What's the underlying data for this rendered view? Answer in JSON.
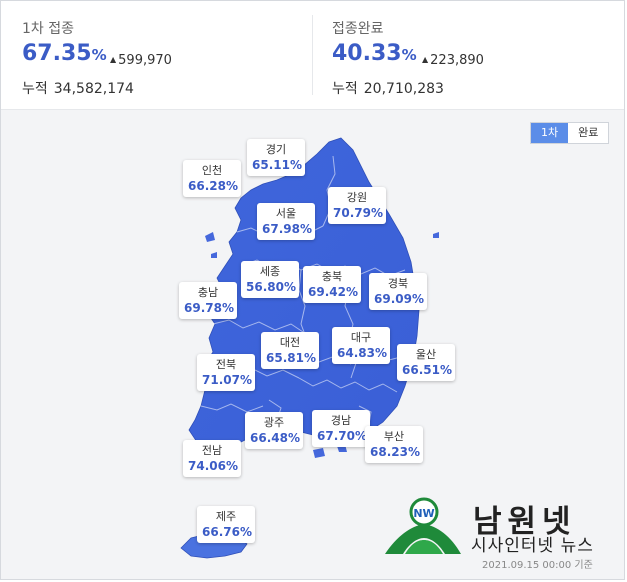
{
  "first_dose": {
    "title": "1차 접종",
    "percent": "67.35",
    "unit": "%",
    "delta": "599,970",
    "cumulative_label": "누적",
    "cumulative_value": "34,582,174"
  },
  "completed": {
    "title": "접종완료",
    "percent": "40.33",
    "unit": "%",
    "delta": "223,890",
    "cumulative_label": "누적",
    "cumulative_value": "20,710,283"
  },
  "toggle": {
    "first": "1차",
    "complete": "완료"
  },
  "regions": [
    {
      "name": "인천",
      "value": "66.28%"
    },
    {
      "name": "경기",
      "value": "65.11%"
    },
    {
      "name": "서울",
      "value": "67.98%"
    },
    {
      "name": "강원",
      "value": "70.79%"
    },
    {
      "name": "세종",
      "value": "56.80%"
    },
    {
      "name": "충북",
      "value": "69.42%"
    },
    {
      "name": "경북",
      "value": "69.09%"
    },
    {
      "name": "충남",
      "value": "69.78%"
    },
    {
      "name": "대전",
      "value": "65.81%"
    },
    {
      "name": "대구",
      "value": "64.83%"
    },
    {
      "name": "울산",
      "value": "66.51%"
    },
    {
      "name": "전북",
      "value": "71.07%"
    },
    {
      "name": "광주",
      "value": "66.48%"
    },
    {
      "name": "경남",
      "value": "67.70%"
    },
    {
      "name": "부산",
      "value": "68.23%"
    },
    {
      "name": "전남",
      "value": "74.06%"
    },
    {
      "name": "제주",
      "value": "66.76%"
    }
  ],
  "logo": {
    "title": "남원넷",
    "subtitle": "시사인터넷 뉴스",
    "badge": "NW"
  },
  "date_note": "2021.09.15 00:00 기준",
  "colors": {
    "accent": "#3b5cc6",
    "map_fill": "#4a72e0",
    "toggle_active": "#5b8de8"
  }
}
